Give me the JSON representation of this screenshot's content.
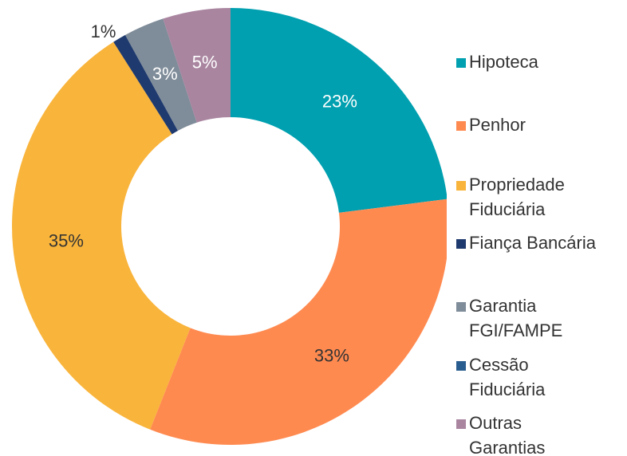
{
  "chart_data": {
    "type": "donut",
    "categories": [
      "Hipoteca",
      "Penhor",
      "Propriedade Fiduciária",
      "Fiança Bancária",
      "Garantia FGI/FAMPE",
      "Cessão Fiduciária",
      "Outras Garantias"
    ],
    "values": [
      23,
      33,
      35,
      1,
      3,
      0,
      5
    ],
    "value_labels": [
      "23%",
      "33%",
      "35%",
      "1%",
      "3%",
      null,
      "5%"
    ],
    "colors": [
      "#00a0b0",
      "#ff8a50",
      "#f9b43b",
      "#1f3a6e",
      "#7f8c99",
      "#2a5d8f",
      "#a985a0"
    ],
    "legend": "right"
  }
}
